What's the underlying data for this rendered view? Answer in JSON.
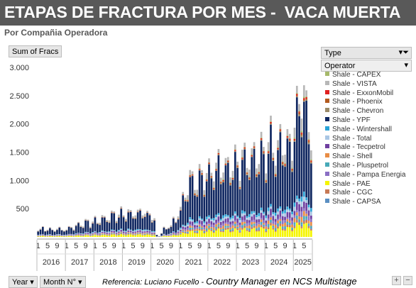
{
  "header": {
    "title": "ETAPAS DE FRACTURA POR MES -  VACA MUERTA",
    "subtitle": "Por Compañia Operadora"
  },
  "pivot": {
    "value_field": "Sum of Fracs",
    "type_filter": "Type",
    "operator_field": "Operator",
    "year_field": "Year",
    "month_field": "Month N°"
  },
  "footer": {
    "reference_prefix": "Referencia:  Luciano Fucello - ",
    "reference_role": "Country Manager en NCS Multistage"
  },
  "colors": {
    "title_bg": "#595959",
    "series": {
      "Shale - CAPEX": "#a6b96a",
      "Shale - VISTA": "#b7b7b7",
      "Shale - ExxonMobil": "#e02020",
      "Shale - Phoenix": "#b35a1f",
      "Shale - Chevron": "#9a8a68",
      "Shale - YPF": "#0f2660",
      "Shale - Wintershall": "#2aa3d6",
      "Shale - Total": "#a9c6e4",
      "Shale - Tecpetrol": "#6f3fa0",
      "Shale - Shell": "#e88c45",
      "Shale - Pluspetrol": "#47a9b8",
      "Shale - Pampa Energia": "#8a6fc4",
      "Shale - PAE": "#f5f500",
      "Shale - CGC": "#c77a56",
      "Shale - CAPSA": "#5a8fc2"
    }
  },
  "chart_data": {
    "type": "bar",
    "stacked": true,
    "y_axis_title": "Sum of Fracs",
    "ylim": [
      0,
      3000
    ],
    "yticks": [
      "3.000",
      "2.500",
      "2.000",
      "1.500",
      "1.000",
      "500",
      ""
    ],
    "ytick_values": [
      3000,
      2500,
      2000,
      1500,
      1000,
      500,
      0
    ],
    "x_years": [
      "2016",
      "2017",
      "2018",
      "2019",
      "2020",
      "2021",
      "2022",
      "2023",
      "2024",
      "2025"
    ],
    "x_month_ticks": [
      "1",
      "5",
      "9"
    ],
    "months_per_year": [
      12,
      12,
      12,
      12,
      12,
      12,
      12,
      12,
      12,
      8
    ],
    "legend": [
      "Shale - CAPEX",
      "Shale - VISTA",
      "Shale - ExxonMobil",
      "Shale - Phoenix",
      "Shale - Chevron",
      "Shale - YPF",
      "Shale - Wintershall",
      "Shale - Total",
      "Shale - Tecpetrol",
      "Shale - Shell",
      "Shale - Pluspetrol",
      "Shale - Pampa Energia",
      "Shale - PAE",
      "Shale - CGC",
      "Shale - CAPSA"
    ],
    "legend_position": "right",
    "grid": false,
    "totals": [
      140,
      130,
      150,
      120,
      150,
      140,
      110,
      130,
      150,
      140,
      120,
      140,
      120,
      150,
      190,
      160,
      180,
      220,
      240,
      200,
      250,
      280,
      230,
      260,
      290,
      260,
      310,
      330,
      300,
      350,
      330,
      370,
      400,
      360,
      390,
      420,
      380,
      400,
      430,
      380,
      410,
      440,
      390,
      430,
      470,
      420,
      360,
      400,
      380,
      300,
      30,
      10,
      80,
      150,
      120,
      200,
      220,
      280,
      250,
      460,
      500,
      620,
      730,
      900,
      1000,
      950,
      980,
      920,
      1020,
      1060,
      1040,
      1100,
      1080,
      1150,
      1220,
      1140,
      1250,
      1200,
      1300,
      1120,
      1230,
      1310,
      1180,
      1270,
      1300,
      1250,
      1380,
      1320,
      1350,
      1400,
      1280,
      1420,
      1480,
      1350,
      1450,
      1500,
      1420,
      1550,
      1680,
      1590,
      1520,
      1430,
      1650,
      1720,
      1580,
      1500,
      1660,
      1700,
      1850,
      2080,
      2420,
      2580,
      2300,
      2100,
      2150,
      1720
    ],
    "shares": {
      "Shale - YPF": 0.62,
      "Shale - PAE": 0.09,
      "Shale - Tecpetrol": 0.05,
      "Shale - Pampa Energia": 0.03,
      "Shale - Wintershall": 0.03,
      "Shale - Total": 0.03,
      "Shale - Shell": 0.03,
      "Shale - Pluspetrol": 0.02,
      "Shale - CGC": 0.02,
      "Shale - CAPSA": 0.01,
      "Shale - Chevron": 0.01,
      "Shale - Phoenix": 0.01,
      "Shale - ExxonMobil": 0.01,
      "Shale - CAPEX": 0.01,
      "Shale - VISTA": 0.07
    }
  }
}
